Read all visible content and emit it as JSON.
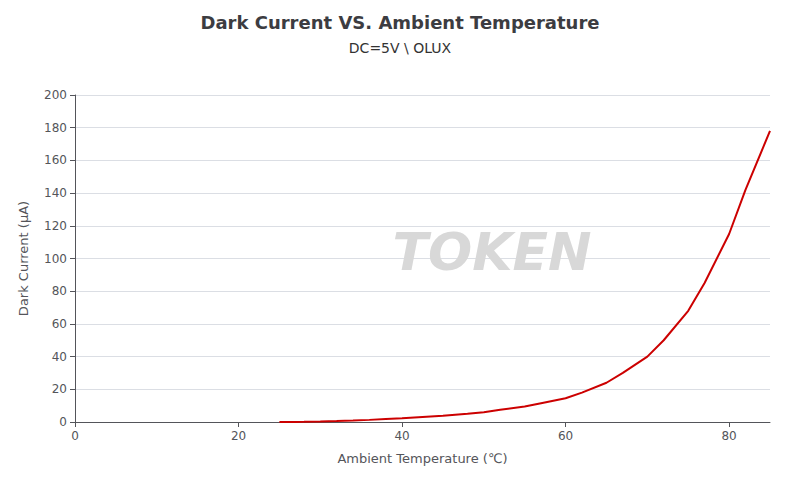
{
  "chart_data": {
    "type": "line",
    "title": "Dark Current VS. Ambient Temperature",
    "subtitle": "DC=5V \\ OLUX",
    "xlabel": "Ambient Temperature (℃)",
    "ylabel": "Dark Current (μA)",
    "annotations": [
      "TOKEN"
    ],
    "x": [
      25,
      27,
      28,
      30,
      32,
      34,
      36,
      38,
      40,
      42,
      45,
      48,
      50,
      52,
      55,
      57,
      60,
      62,
      65,
      67,
      70,
      72,
      75,
      77,
      80,
      82,
      85
    ],
    "values": [
      0,
      0.05,
      0.12,
      0.3,
      0.55,
      0.9,
      1.3,
      1.8,
      2.3,
      2.9,
      3.8,
      5.0,
      6.0,
      7.5,
      9.5,
      11.5,
      14.5,
      18.0,
      24.0,
      30.0,
      40.0,
      50.0,
      68.0,
      85.0,
      115.0,
      142.0,
      178.0
    ],
    "color": "#cc0000",
    "xlim": [
      0,
      85
    ],
    "ylim": [
      0,
      200
    ],
    "xticks": [
      0,
      20,
      40,
      60,
      80
    ],
    "yticks": [
      0,
      20,
      40,
      60,
      80,
      100,
      120,
      140,
      160,
      180,
      200
    ],
    "grid": true
  }
}
